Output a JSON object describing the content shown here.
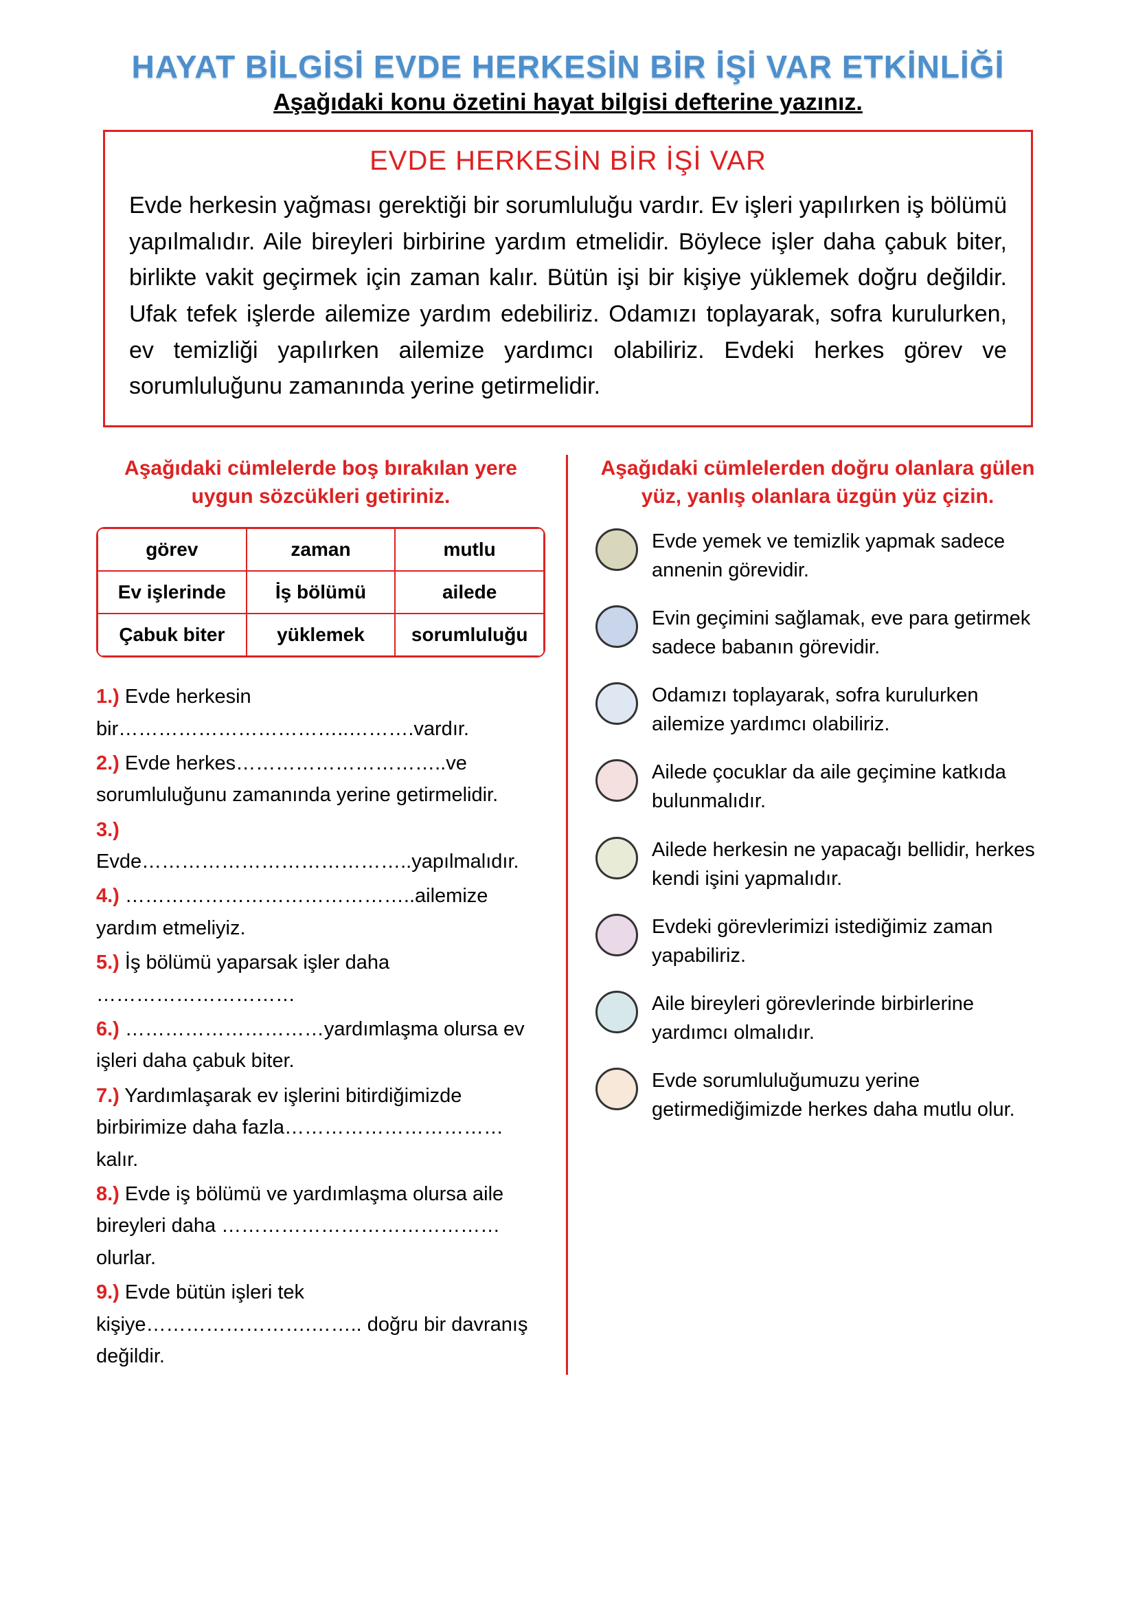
{
  "header": {
    "title": "HAYAT BİLGİSİ EVDE HERKESİN BİR İŞİ VAR ETKİNLİĞİ",
    "subtitle": "Aşağıdaki konu özetini hayat bilgisi defterine yazınız.",
    "title_color": "#4d8fcc"
  },
  "summary_box": {
    "border_color": "#d22",
    "title": "EVDE HERKESİN BİR İŞİ VAR",
    "body": "Evde herkesin yağması gerektiği bir sorumluluğu vardır. Ev işleri yapılırken iş bölümü yapılmalıdır. Aile bireyleri birbirine yardım etmelidir. Böylece işler daha çabuk biter, birlikte vakit geçirmek için zaman kalır. Bütün işi bir kişiye yüklemek doğru değildir. Ufak tefek işlerde ailemize yardım edebiliriz. Odamızı toplayarak, sofra kurulurken, ev temizliği yapılırken ailemize yardımcı olabiliriz. Evdeki herkes görev ve sorumluluğunu zamanında yerine getirmelidir."
  },
  "fill_section": {
    "heading": "Aşağıdaki cümlelerde boş bırakılan yere uygun sözcükleri getiriniz.",
    "wordbank": [
      "görev",
      "zaman",
      "mutlu",
      "Ev işlerinde",
      "İş bölümü",
      "ailede",
      "Çabuk biter",
      "yüklemek",
      "sorumluluğu"
    ],
    "items": [
      {
        "n": "1.)",
        "text": " Evde herkesin bir……………………………..……….vardır."
      },
      {
        "n": "2.)",
        "text": " Evde herkes…………………………..ve sorumluluğunu zamanında yerine getirmelidir."
      },
      {
        "n": "3.)",
        "text": " Evde…………………………………..yapılmalıdır."
      },
      {
        "n": "4.)",
        "text": " ……………………………………..ailemize yardım etmeliyiz."
      },
      {
        "n": "5.)",
        "text": " İş bölümü yaparsak işler daha …………………………"
      },
      {
        "n": "6.)",
        "text": " …………………………yardımlaşma olursa ev işleri daha çabuk biter."
      },
      {
        "n": "7.)",
        "text": " Yardımlaşarak ev işlerini bitirdiğimizde birbirimize daha fazla……………………………kalır."
      },
      {
        "n": "8.)",
        "text": " Evde iş bölümü ve yardımlaşma olursa aile bireyleri daha ……………………………………olurlar."
      },
      {
        "n": "9.)",
        "text": " Evde bütün işleri tek kişiye…………………….…….. doğru bir davranış değildir."
      }
    ]
  },
  "tf_section": {
    "heading": "Aşağıdaki cümlelerden doğru olanlara gülen yüz, yanlış olanlara üzgün yüz çizin.",
    "items": [
      {
        "color": "#d9d7bb",
        "text": "Evde yemek ve temizlik yapmak sadece annenin görevidir."
      },
      {
        "color": "#c8d5ea",
        "text": "Evin geçimini sağlamak, eve para getirmek sadece babanın görevidir."
      },
      {
        "color": "#dfe7f2",
        "text": "Odamızı toplayarak, sofra kurulurken ailemize yardımcı olabiliriz."
      },
      {
        "color": "#f4e0df",
        "text": "Ailede çocuklar da aile geçimine katkıda bulunmalıdır."
      },
      {
        "color": "#e8ebd6",
        "text": "Ailede herkesin ne yapacağı bellidir, herkes kendi işini yapmalıdır."
      },
      {
        "color": "#ead9e6",
        "text": "Evdeki görevlerimizi istediğimiz zaman yapabiliriz."
      },
      {
        "color": "#d6e8ea",
        "text": "Aile bireyleri görevlerinde birbirlerine yardımcı olmalıdır."
      },
      {
        "color": "#f7e8da",
        "text": "Evde sorumluluğumuzu yerine getirmediğimizde herkes daha mutlu olur."
      }
    ]
  }
}
